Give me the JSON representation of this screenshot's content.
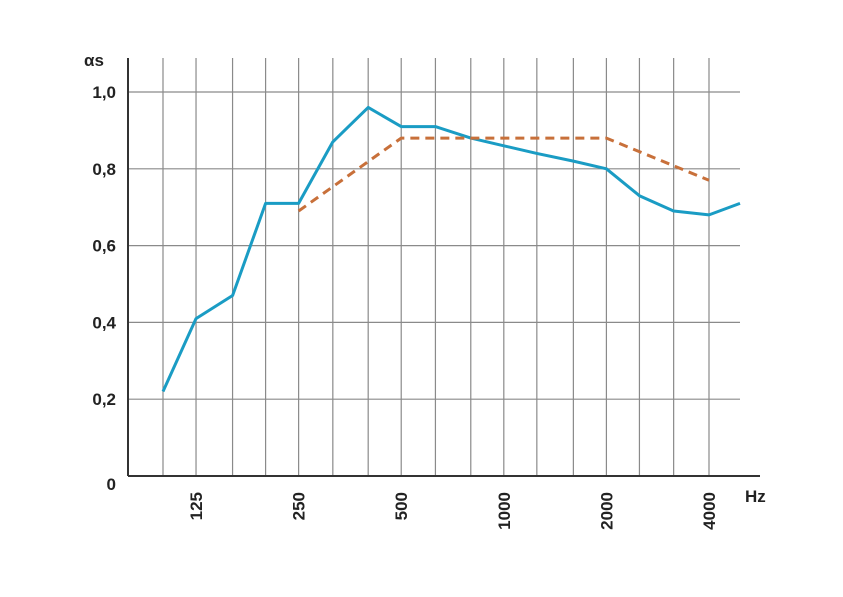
{
  "chart_data": {
    "type": "line",
    "ylabel": "αs",
    "xlabel": "Hz",
    "x_scale": "log",
    "xlim": [
      100,
      5000
    ],
    "ylim": [
      0,
      1.0
    ],
    "x_tick_labels": [
      "125",
      "250",
      "500",
      "1000",
      "2000",
      "4000"
    ],
    "x_tick_values": [
      125,
      250,
      500,
      1000,
      2000,
      4000
    ],
    "y_tick_labels": [
      "0",
      "0,2",
      "0,4",
      "0,6",
      "0,8",
      "1,0"
    ],
    "y_tick_values": [
      0,
      0.2,
      0.4,
      0.6,
      0.8,
      1.0
    ],
    "grid": true,
    "series": [
      {
        "style": "solid",
        "color": "#1a9cc4",
        "x": [
          100,
          125,
          160,
          200,
          250,
          315,
          400,
          500,
          630,
          800,
          1000,
          1250,
          1600,
          2000,
          2500,
          3150,
          4000,
          5000
        ],
        "y": [
          0.22,
          0.41,
          0.47,
          0.71,
          0.71,
          0.87,
          0.96,
          0.91,
          0.91,
          0.88,
          0.86,
          0.84,
          0.82,
          0.8,
          0.73,
          0.69,
          0.68,
          0.71
        ]
      },
      {
        "style": "dashed",
        "color": "#c8703a",
        "x": [
          250,
          500,
          1000,
          2000,
          4000
        ],
        "y": [
          0.69,
          0.88,
          0.88,
          0.88,
          0.77
        ]
      }
    ]
  }
}
